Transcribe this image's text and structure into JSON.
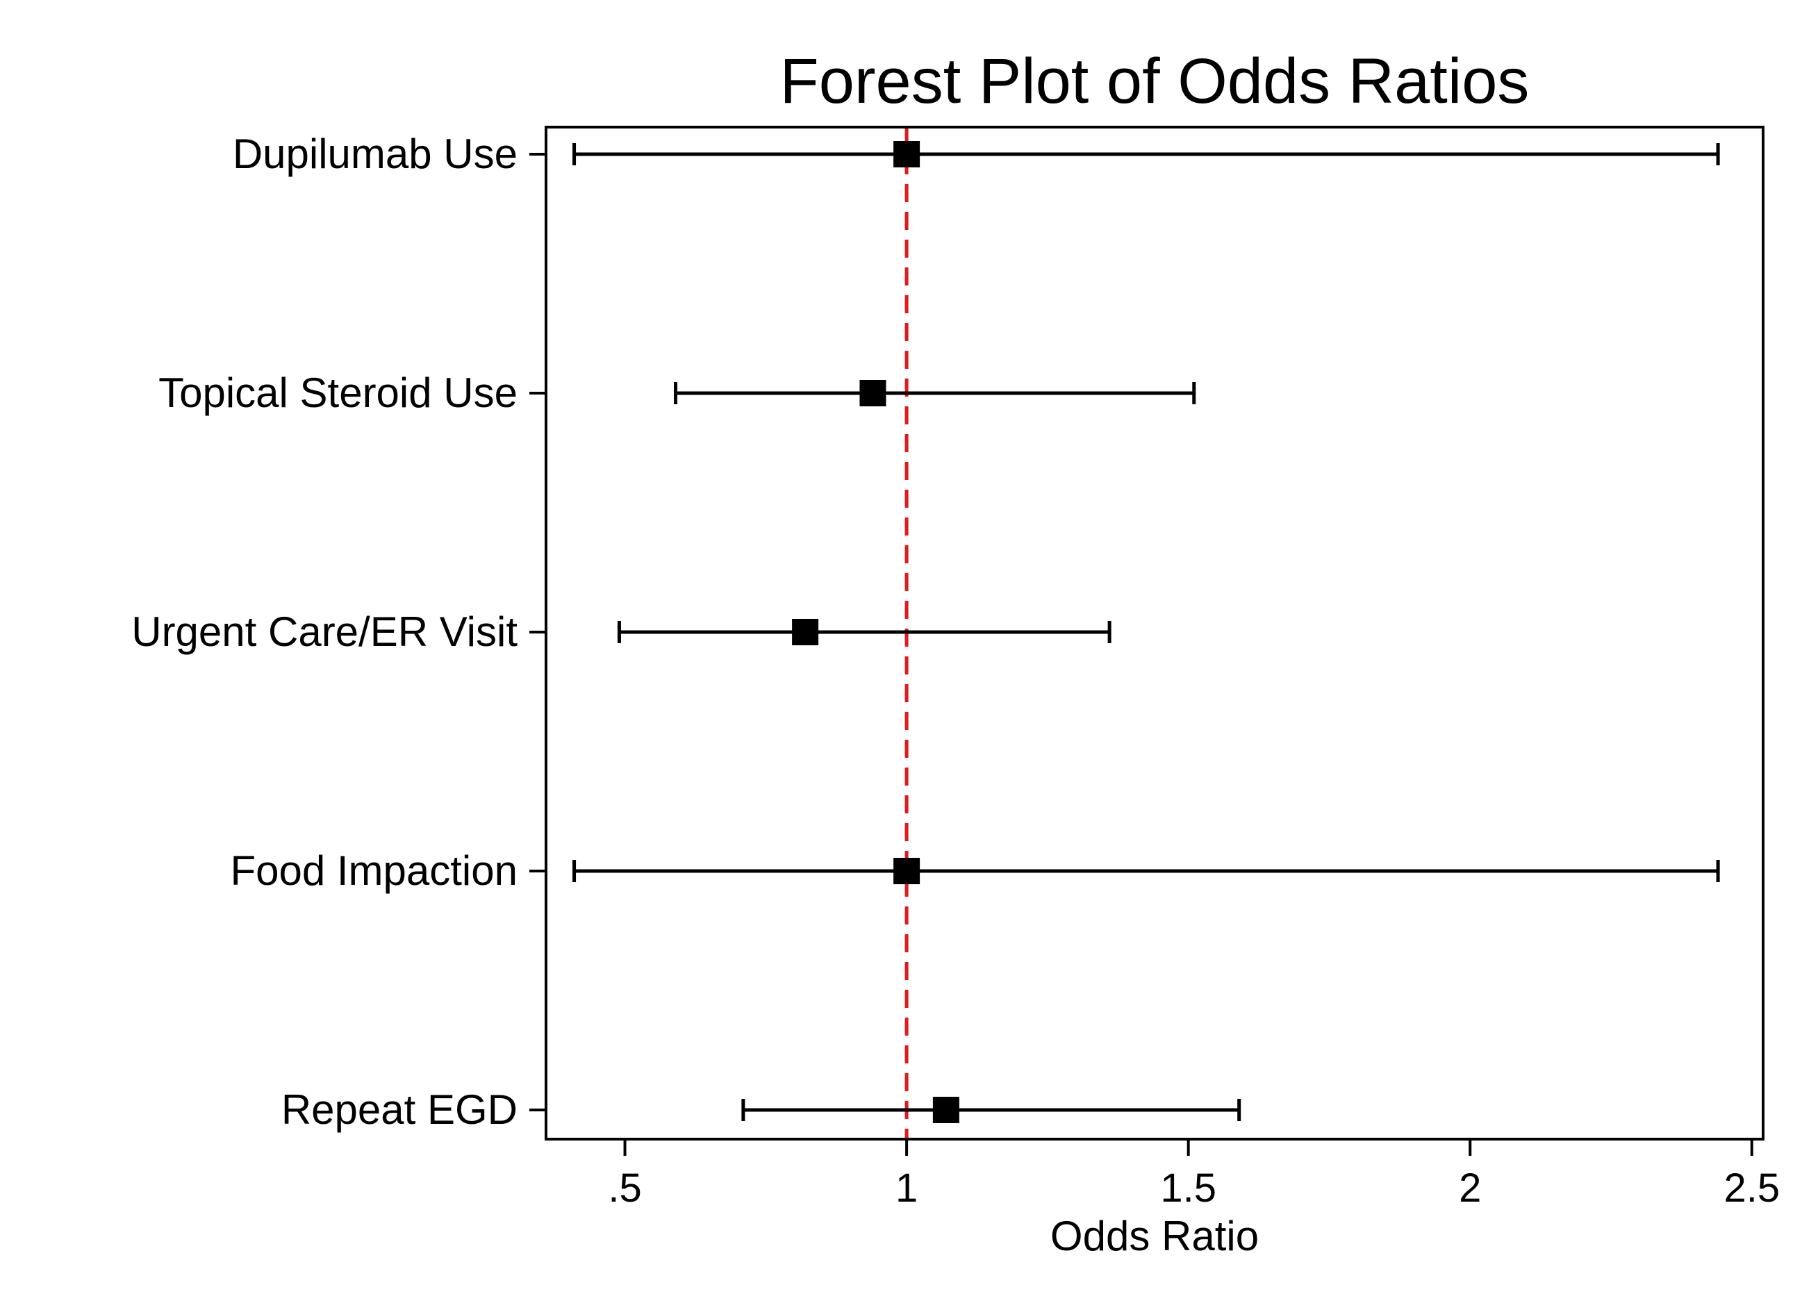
{
  "chart_data": {
    "type": "forest",
    "title": "Forest Plot of Odds Ratios",
    "xlabel": "Odds Ratio",
    "ylabel": "",
    "xlim": [
      0.36,
      2.52
    ],
    "xticks": [
      0.5,
      1,
      1.5,
      2,
      2.5
    ],
    "xtick_labels": [
      ".5",
      "1",
      "1.5",
      "2",
      "2.5"
    ],
    "reference_line": {
      "x": 1,
      "style": "dashed",
      "color": "#e31a1c"
    },
    "grid": false,
    "legend": "none",
    "colors": {
      "marker": "#000000",
      "ci_line": "#000000",
      "reference": "#e31a1c"
    },
    "categories": [
      "Dupilumab Use",
      "Topical Steroid Use",
      "Urgent Care/ER Visit",
      "Food Impaction",
      "Repeat EGD"
    ],
    "estimates": [
      1.0,
      0.94,
      0.82,
      1.0,
      1.07
    ],
    "ci_lower": [
      0.41,
      0.59,
      0.49,
      0.41,
      0.71
    ],
    "ci_upper": [
      2.44,
      1.51,
      1.36,
      2.44,
      1.59
    ]
  }
}
